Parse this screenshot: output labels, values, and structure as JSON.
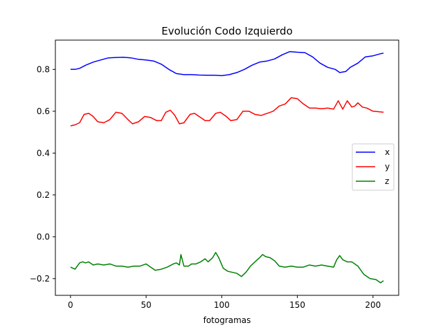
{
  "chart_data": {
    "type": "line",
    "title": "Evolución Codo Izquierdo",
    "xlabel": "fotogramas",
    "ylabel": "",
    "xlim": [
      -10,
      217
    ],
    "ylim": [
      -0.28,
      0.94
    ],
    "xticks": [
      0,
      50,
      100,
      150,
      200
    ],
    "yticks": [
      -0.2,
      0.0,
      0.2,
      0.4,
      0.6,
      0.8
    ],
    "ytick_labels": [
      "−0.2",
      "0.0",
      "0.2",
      "0.4",
      "0.6",
      "0.8"
    ],
    "grid": false,
    "legend_position": "center-right",
    "series": [
      {
        "name": "x",
        "color": "#0000ff",
        "points": [
          [
            0,
            0.8
          ],
          [
            3,
            0.8
          ],
          [
            6,
            0.805
          ],
          [
            10,
            0.82
          ],
          [
            15,
            0.835
          ],
          [
            20,
            0.845
          ],
          [
            25,
            0.855
          ],
          [
            30,
            0.857
          ],
          [
            35,
            0.858
          ],
          [
            40,
            0.855
          ],
          [
            45,
            0.848
          ],
          [
            50,
            0.845
          ],
          [
            55,
            0.84
          ],
          [
            60,
            0.825
          ],
          [
            65,
            0.8
          ],
          [
            70,
            0.78
          ],
          [
            75,
            0.775
          ],
          [
            80,
            0.775
          ],
          [
            85,
            0.773
          ],
          [
            90,
            0.772
          ],
          [
            95,
            0.772
          ],
          [
            100,
            0.77
          ],
          [
            105,
            0.775
          ],
          [
            110,
            0.785
          ],
          [
            115,
            0.8
          ],
          [
            120,
            0.82
          ],
          [
            125,
            0.835
          ],
          [
            130,
            0.84
          ],
          [
            135,
            0.85
          ],
          [
            140,
            0.87
          ],
          [
            145,
            0.885
          ],
          [
            150,
            0.882
          ],
          [
            155,
            0.88
          ],
          [
            160,
            0.86
          ],
          [
            165,
            0.83
          ],
          [
            170,
            0.81
          ],
          [
            175,
            0.8
          ],
          [
            178,
            0.785
          ],
          [
            182,
            0.79
          ],
          [
            185,
            0.81
          ],
          [
            190,
            0.83
          ],
          [
            195,
            0.86
          ],
          [
            200,
            0.865
          ],
          [
            205,
            0.875
          ],
          [
            207,
            0.878
          ]
        ]
      },
      {
        "name": "y",
        "color": "#ff0000",
        "points": [
          [
            0,
            0.53
          ],
          [
            3,
            0.535
          ],
          [
            6,
            0.545
          ],
          [
            9,
            0.585
          ],
          [
            12,
            0.59
          ],
          [
            15,
            0.575
          ],
          [
            18,
            0.55
          ],
          [
            22,
            0.545
          ],
          [
            26,
            0.56
          ],
          [
            30,
            0.595
          ],
          [
            34,
            0.59
          ],
          [
            38,
            0.56
          ],
          [
            41,
            0.54
          ],
          [
            45,
            0.55
          ],
          [
            49,
            0.575
          ],
          [
            53,
            0.57
          ],
          [
            57,
            0.555
          ],
          [
            60,
            0.555
          ],
          [
            63,
            0.595
          ],
          [
            66,
            0.605
          ],
          [
            69,
            0.58
          ],
          [
            72,
            0.54
          ],
          [
            75,
            0.545
          ],
          [
            79,
            0.585
          ],
          [
            82,
            0.59
          ],
          [
            86,
            0.57
          ],
          [
            89,
            0.555
          ],
          [
            92,
            0.555
          ],
          [
            96,
            0.59
          ],
          [
            99,
            0.595
          ],
          [
            103,
            0.575
          ],
          [
            106,
            0.555
          ],
          [
            110,
            0.56
          ],
          [
            114,
            0.6
          ],
          [
            118,
            0.6
          ],
          [
            122,
            0.585
          ],
          [
            126,
            0.58
          ],
          [
            130,
            0.59
          ],
          [
            134,
            0.6
          ],
          [
            138,
            0.625
          ],
          [
            142,
            0.635
          ],
          [
            146,
            0.665
          ],
          [
            150,
            0.66
          ],
          [
            154,
            0.635
          ],
          [
            158,
            0.615
          ],
          [
            162,
            0.615
          ],
          [
            166,
            0.612
          ],
          [
            170,
            0.615
          ],
          [
            174,
            0.61
          ],
          [
            177,
            0.65
          ],
          [
            180,
            0.61
          ],
          [
            183,
            0.65
          ],
          [
            186,
            0.62
          ],
          [
            188,
            0.625
          ],
          [
            190,
            0.64
          ],
          [
            193,
            0.62
          ],
          [
            196,
            0.615
          ],
          [
            200,
            0.6
          ],
          [
            203,
            0.598
          ],
          [
            207,
            0.595
          ]
        ]
      },
      {
        "name": "z",
        "color": "#008000",
        "points": [
          [
            0,
            -0.145
          ],
          [
            3,
            -0.155
          ],
          [
            6,
            -0.125
          ],
          [
            8,
            -0.12
          ],
          [
            10,
            -0.125
          ],
          [
            12,
            -0.12
          ],
          [
            15,
            -0.135
          ],
          [
            18,
            -0.13
          ],
          [
            22,
            -0.135
          ],
          [
            26,
            -0.13
          ],
          [
            30,
            -0.14
          ],
          [
            34,
            -0.14
          ],
          [
            38,
            -0.145
          ],
          [
            42,
            -0.14
          ],
          [
            46,
            -0.14
          ],
          [
            50,
            -0.13
          ],
          [
            53,
            -0.145
          ],
          [
            56,
            -0.16
          ],
          [
            60,
            -0.155
          ],
          [
            64,
            -0.145
          ],
          [
            68,
            -0.13
          ],
          [
            70,
            -0.125
          ],
          [
            72,
            -0.135
          ],
          [
            73,
            -0.085
          ],
          [
            75,
            -0.14
          ],
          [
            78,
            -0.14
          ],
          [
            80,
            -0.13
          ],
          [
            83,
            -0.13
          ],
          [
            86,
            -0.12
          ],
          [
            89,
            -0.105
          ],
          [
            91,
            -0.12
          ],
          [
            94,
            -0.1
          ],
          [
            96,
            -0.075
          ],
          [
            98,
            -0.1
          ],
          [
            101,
            -0.15
          ],
          [
            104,
            -0.165
          ],
          [
            107,
            -0.17
          ],
          [
            110,
            -0.175
          ],
          [
            113,
            -0.19
          ],
          [
            116,
            -0.17
          ],
          [
            119,
            -0.14
          ],
          [
            122,
            -0.12
          ],
          [
            125,
            -0.1
          ],
          [
            127,
            -0.085
          ],
          [
            129,
            -0.095
          ],
          [
            132,
            -0.1
          ],
          [
            135,
            -0.115
          ],
          [
            138,
            -0.14
          ],
          [
            142,
            -0.145
          ],
          [
            146,
            -0.14
          ],
          [
            150,
            -0.145
          ],
          [
            154,
            -0.145
          ],
          [
            158,
            -0.135
          ],
          [
            162,
            -0.14
          ],
          [
            166,
            -0.135
          ],
          [
            170,
            -0.14
          ],
          [
            174,
            -0.145
          ],
          [
            176,
            -0.11
          ],
          [
            178,
            -0.09
          ],
          [
            180,
            -0.11
          ],
          [
            183,
            -0.12
          ],
          [
            186,
            -0.12
          ],
          [
            190,
            -0.14
          ],
          [
            194,
            -0.18
          ],
          [
            198,
            -0.2
          ],
          [
            202,
            -0.205
          ],
          [
            205,
            -0.22
          ],
          [
            207,
            -0.21
          ]
        ]
      }
    ]
  }
}
